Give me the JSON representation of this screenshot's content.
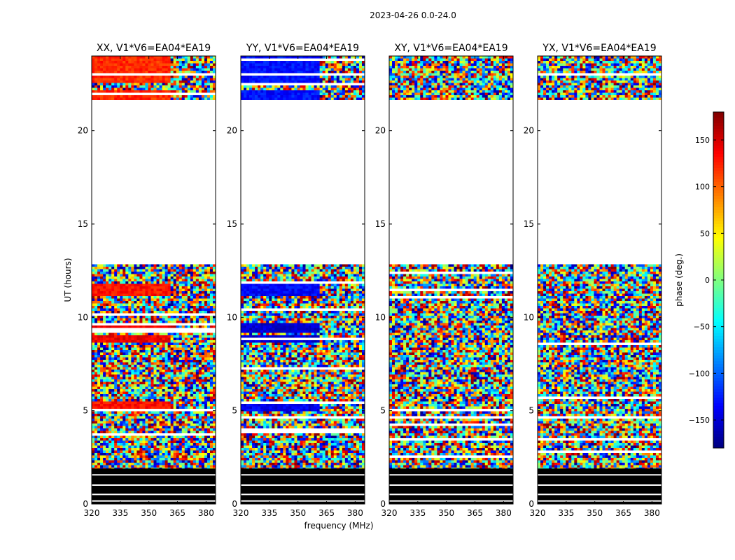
{
  "figure_title": "2023-04-26 0.0-24.0",
  "colorbar": {
    "label": "phase (deg.)",
    "ticks": [
      "150",
      "100",
      "50",
      "0",
      "−50",
      "−100",
      "−150"
    ]
  },
  "chart_data": [
    {
      "type": "heatmap",
      "title": "XX, V1*V6=EA04*EA19",
      "ylabel": "UT (hours)",
      "xlabel": "",
      "xlim": [
        320,
        385
      ],
      "ylim": [
        0,
        24
      ],
      "xticks": [
        "320",
        "335",
        "350",
        "365",
        "380"
      ],
      "yticks": [
        "0",
        "5",
        "10",
        "15",
        "20"
      ],
      "value_range": [
        -180,
        180
      ],
      "blank_hours": [
        21.6,
        12.8
      ],
      "dominant_phase_bands": [
        {
          "start": 22.5,
          "end": 24.0,
          "phase": 120
        },
        {
          "start": 21.6,
          "end": 22.2,
          "phase": 120
        },
        {
          "start": 11.2,
          "end": 11.8,
          "phase": 130
        },
        {
          "start": 9.2,
          "end": 9.7,
          "phase": 140
        },
        {
          "start": 8.6,
          "end": 9.0,
          "phase": 140
        },
        {
          "start": 5.0,
          "end": 5.5,
          "phase": 130
        }
      ]
    },
    {
      "type": "heatmap",
      "title": "YY, V1*V6=EA04*EA19",
      "ylabel": "",
      "xlabel": "frequency (MHz)",
      "xlim": [
        320,
        385
      ],
      "ylim": [
        0,
        24
      ],
      "xticks": [
        "320",
        "335",
        "350",
        "365",
        "380"
      ],
      "yticks": [
        "0",
        "5",
        "10",
        "15",
        "20"
      ],
      "value_range": [
        -180,
        180
      ],
      "blank_hours": [
        21.6,
        12.8
      ],
      "dominant_phase_bands": [
        {
          "start": 22.5,
          "end": 24.0,
          "phase": -130
        },
        {
          "start": 21.6,
          "end": 22.2,
          "phase": -130
        },
        {
          "start": 11.2,
          "end": 11.8,
          "phase": -135
        },
        {
          "start": 9.2,
          "end": 9.7,
          "phase": -150
        },
        {
          "start": 8.6,
          "end": 9.0,
          "phase": -150
        },
        {
          "start": 5.0,
          "end": 5.5,
          "phase": -140
        }
      ]
    },
    {
      "type": "heatmap",
      "title": "XY, V1*V6=EA04*EA19",
      "ylabel": "",
      "xlabel": "",
      "xlim": [
        320,
        385
      ],
      "ylim": [
        0,
        24
      ],
      "xticks": [
        "320",
        "335",
        "350",
        "365",
        "380"
      ],
      "yticks": [
        "0",
        "5",
        "10",
        "15",
        "20"
      ],
      "value_range": [
        -180,
        180
      ],
      "blank_hours": [
        21.6,
        12.8
      ],
      "dominant_phase_bands": []
    },
    {
      "type": "heatmap",
      "title": "YX, V1*V6=EA04*EA19",
      "ylabel": "",
      "xlabel": "",
      "xlim": [
        320,
        385
      ],
      "ylim": [
        0,
        24
      ],
      "xticks": [
        "320",
        "335",
        "350",
        "365",
        "380"
      ],
      "yticks": [
        "0",
        "5",
        "10",
        "15",
        "20"
      ],
      "value_range": [
        -180,
        180
      ],
      "blank_hours": [
        21.6,
        12.8
      ],
      "dominant_phase_bands": []
    }
  ]
}
